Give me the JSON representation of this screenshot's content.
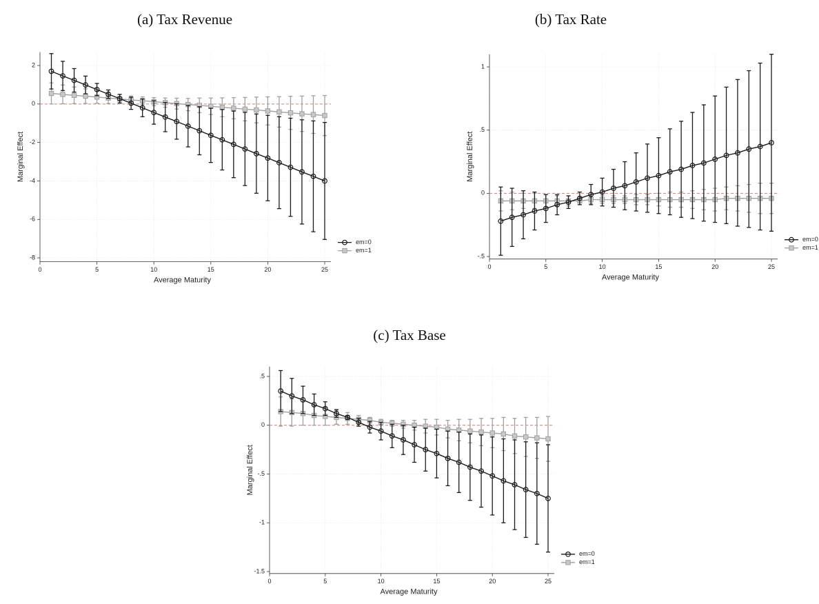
{
  "chart_data": [
    {
      "type": "line",
      "title": "(a) Tax Revenue",
      "xlabel": "Average Maturity",
      "ylabel": "Marginal Effect",
      "x": [
        1,
        2,
        3,
        4,
        5,
        6,
        7,
        8,
        9,
        10,
        11,
        12,
        13,
        14,
        15,
        16,
        17,
        18,
        19,
        20,
        21,
        22,
        23,
        24,
        25
      ],
      "xlim": [
        0,
        25
      ],
      "xticks": [
        0,
        5,
        10,
        15,
        20,
        25
      ],
      "ylim": [
        -8.2,
        2.7
      ],
      "yticks": [
        -8,
        -6,
        -4,
        -2,
        0,
        2
      ],
      "grid": true,
      "refline": 0,
      "legend": "outside-right-bottom",
      "series": [
        {
          "name": "em=0",
          "color": "#1a1a1a",
          "marker": "circle",
          "values": [
            1.7,
            1.46,
            1.23,
            0.99,
            0.75,
            0.51,
            0.28,
            0.04,
            -0.2,
            -0.44,
            -0.68,
            -0.91,
            -1.15,
            -1.39,
            -1.63,
            -1.86,
            -2.1,
            -2.34,
            -2.58,
            -2.81,
            -3.05,
            -3.29,
            -3.53,
            -3.76,
            -4.0
          ],
          "error": [
            0.92,
            0.76,
            0.61,
            0.46,
            0.32,
            0.22,
            0.22,
            0.32,
            0.46,
            0.61,
            0.76,
            0.92,
            1.08,
            1.25,
            1.41,
            1.57,
            1.73,
            1.9,
            2.06,
            2.22,
            2.39,
            2.55,
            2.71,
            2.88,
            3.04
          ]
        },
        {
          "name": "em=1",
          "color": "#a0a0a0",
          "marker": "square",
          "values": [
            0.55,
            0.5,
            0.45,
            0.41,
            0.36,
            0.31,
            0.26,
            0.21,
            0.17,
            0.12,
            0.07,
            0.02,
            -0.03,
            -0.07,
            -0.12,
            -0.17,
            -0.22,
            -0.27,
            -0.31,
            -0.36,
            -0.41,
            -0.46,
            -0.51,
            -0.55,
            -0.6
          ],
          "error": [
            0.55,
            0.49,
            0.43,
            0.38,
            0.32,
            0.28,
            0.24,
            0.21,
            0.2,
            0.21,
            0.24,
            0.28,
            0.32,
            0.38,
            0.43,
            0.49,
            0.55,
            0.61,
            0.67,
            0.73,
            0.79,
            0.86,
            0.92,
            0.98,
            1.04
          ]
        }
      ]
    },
    {
      "type": "line",
      "title": "(b) Tax Rate",
      "xlabel": "Average Maturity",
      "ylabel": "Marginal Effect",
      "x": [
        1,
        2,
        3,
        4,
        5,
        6,
        7,
        8,
        9,
        10,
        11,
        12,
        13,
        14,
        15,
        16,
        17,
        18,
        19,
        20,
        21,
        22,
        23,
        24,
        25
      ],
      "xlim": [
        0,
        25
      ],
      "xticks": [
        0,
        5,
        10,
        15,
        20,
        25
      ],
      "ylim": [
        -0.52,
        1.1
      ],
      "yticks": [
        {
          "value": -0.5,
          "label": "-.5"
        },
        0,
        {
          "value": 0.5,
          "label": ".5"
        },
        1
      ],
      "grid": true,
      "refline": 0,
      "legend": "outside-right-bottom",
      "series": [
        {
          "name": "em=0",
          "color": "#1a1a1a",
          "marker": "circle",
          "values": [
            -0.22,
            -0.19,
            -0.17,
            -0.14,
            -0.12,
            -0.09,
            -0.07,
            -0.04,
            -0.01,
            0.01,
            0.04,
            0.06,
            0.09,
            0.12,
            0.14,
            0.17,
            0.19,
            0.22,
            0.24,
            0.27,
            0.3,
            0.32,
            0.35,
            0.37,
            0.4
          ],
          "error": [
            0.27,
            0.23,
            0.19,
            0.15,
            0.11,
            0.08,
            0.05,
            0.05,
            0.08,
            0.11,
            0.15,
            0.19,
            0.23,
            0.27,
            0.3,
            0.34,
            0.38,
            0.42,
            0.46,
            0.5,
            0.54,
            0.58,
            0.62,
            0.66,
            0.7
          ]
        },
        {
          "name": "em=1",
          "color": "#a0a0a0",
          "marker": "square",
          "values": [
            -0.06,
            -0.06,
            -0.06,
            -0.06,
            -0.06,
            -0.06,
            -0.06,
            -0.06,
            -0.05,
            -0.05,
            -0.05,
            -0.05,
            -0.05,
            -0.05,
            -0.05,
            -0.05,
            -0.05,
            -0.05,
            -0.05,
            -0.05,
            -0.04,
            -0.04,
            -0.04,
            -0.04,
            -0.04
          ],
          "error": [
            0.08,
            0.07,
            0.06,
            0.06,
            0.05,
            0.04,
            0.04,
            0.03,
            0.03,
            0.03,
            0.03,
            0.03,
            0.04,
            0.04,
            0.05,
            0.06,
            0.06,
            0.07,
            0.08,
            0.09,
            0.09,
            0.1,
            0.11,
            0.12,
            0.12
          ]
        }
      ]
    },
    {
      "type": "line",
      "title": "(c) Tax Base",
      "xlabel": "Average Maturity",
      "ylabel": "Marginal Effect",
      "x": [
        1,
        2,
        3,
        4,
        5,
        6,
        7,
        8,
        9,
        10,
        11,
        12,
        13,
        14,
        15,
        16,
        17,
        18,
        19,
        20,
        21,
        22,
        23,
        24,
        25
      ],
      "xlim": [
        0,
        25
      ],
      "xticks": [
        0,
        5,
        10,
        15,
        20,
        25
      ],
      "ylim": [
        -1.52,
        0.6
      ],
      "yticks": [
        -1.5,
        -1,
        {
          "value": -0.5,
          "label": "-.5"
        },
        0,
        {
          "value": 0.5,
          "label": ".5"
        }
      ],
      "grid": true,
      "refline": 0,
      "legend": "outside-right-bottom",
      "series": [
        {
          "name": "em=0",
          "color": "#1a1a1a",
          "marker": "circle",
          "values": [
            0.35,
            0.3,
            0.26,
            0.21,
            0.17,
            0.12,
            0.08,
            0.03,
            -0.02,
            -0.06,
            -0.11,
            -0.15,
            -0.2,
            -0.25,
            -0.29,
            -0.34,
            -0.38,
            -0.43,
            -0.47,
            -0.52,
            -0.57,
            -0.61,
            -0.66,
            -0.7,
            -0.75
          ],
          "error": [
            0.21,
            0.18,
            0.14,
            0.11,
            0.07,
            0.04,
            0.02,
            0.04,
            0.06,
            0.09,
            0.12,
            0.15,
            0.18,
            0.22,
            0.25,
            0.28,
            0.31,
            0.34,
            0.37,
            0.4,
            0.43,
            0.46,
            0.49,
            0.52,
            0.55
          ]
        },
        {
          "name": "em=1",
          "color": "#a0a0a0",
          "marker": "square",
          "values": [
            0.14,
            0.13,
            0.12,
            0.1,
            0.09,
            0.08,
            0.07,
            0.06,
            0.05,
            0.03,
            0.02,
            0.01,
            0.0,
            -0.01,
            -0.02,
            -0.04,
            -0.05,
            -0.06,
            -0.07,
            -0.08,
            -0.09,
            -0.11,
            -0.12,
            -0.13,
            -0.14
          ],
          "error": [
            0.15,
            0.14,
            0.12,
            0.1,
            0.09,
            0.07,
            0.06,
            0.04,
            0.03,
            0.03,
            0.03,
            0.04,
            0.05,
            0.07,
            0.08,
            0.09,
            0.11,
            0.12,
            0.14,
            0.15,
            0.17,
            0.18,
            0.2,
            0.21,
            0.23
          ]
        }
      ]
    }
  ]
}
